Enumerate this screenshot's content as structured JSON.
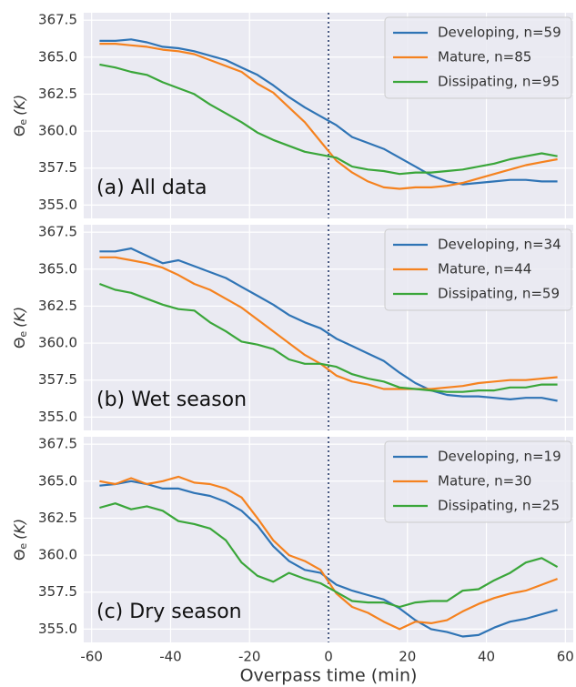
{
  "chart_data": [
    {
      "type": "line",
      "annotation": "(a) All data",
      "ylabel_symbol": "Θ",
      "ylabel_subscript": "e",
      "ylabel_unit": "(K)",
      "xlim": [
        -62,
        62
      ],
      "xticks": [
        -60,
        -40,
        -20,
        0,
        20,
        40,
        60
      ],
      "ylim": [
        354.1,
        368.0
      ],
      "yticks": [
        355.0,
        357.5,
        360.0,
        362.5,
        365.0,
        367.5
      ],
      "grid": true,
      "vline_x": 0,
      "legend": "upper right",
      "x": [
        -58,
        -54,
        -50,
        -46,
        -42,
        -38,
        -34,
        -30,
        -26,
        -22,
        -18,
        -14,
        -10,
        -6,
        -2,
        2,
        6,
        10,
        14,
        18,
        22,
        26,
        30,
        34,
        38,
        42,
        46,
        50,
        54,
        58
      ],
      "series": [
        {
          "name": "Developing, n=59",
          "color": "#2f74b5",
          "values": [
            366.1,
            366.1,
            366.2,
            366.0,
            365.7,
            365.6,
            365.4,
            365.1,
            364.8,
            364.3,
            363.8,
            363.1,
            362.3,
            361.6,
            361.0,
            360.4,
            359.6,
            359.2,
            358.8,
            358.2,
            357.6,
            357.0,
            356.6,
            356.4,
            356.5,
            356.6,
            356.7,
            356.7,
            356.6,
            356.6
          ]
        },
        {
          "name": "Mature, n=85",
          "color": "#f5821f",
          "values": [
            365.9,
            365.9,
            365.8,
            365.7,
            365.5,
            365.4,
            365.2,
            364.8,
            364.4,
            364.0,
            363.2,
            362.6,
            361.6,
            360.6,
            359.3,
            358.0,
            357.2,
            356.6,
            356.2,
            356.1,
            356.2,
            356.2,
            356.3,
            356.5,
            356.8,
            357.1,
            357.4,
            357.7,
            357.9,
            358.1
          ]
        },
        {
          "name": "Dissipating, n=95",
          "color": "#3aa63a",
          "values": [
            364.5,
            364.3,
            364.0,
            363.8,
            363.3,
            362.9,
            362.5,
            361.8,
            361.2,
            360.6,
            359.9,
            359.4,
            359.0,
            358.6,
            358.4,
            358.2,
            357.6,
            357.4,
            357.3,
            357.1,
            357.2,
            357.2,
            357.3,
            357.4,
            357.6,
            357.8,
            358.1,
            358.3,
            358.5,
            358.3
          ]
        }
      ]
    },
    {
      "type": "line",
      "annotation": "(b) Wet season",
      "ylabel_symbol": "Θ",
      "ylabel_subscript": "e",
      "ylabel_unit": "(K)",
      "xlim": [
        -62,
        62
      ],
      "xticks": [
        -60,
        -40,
        -20,
        0,
        20,
        40,
        60
      ],
      "ylim": [
        354.1,
        368.0
      ],
      "yticks": [
        355.0,
        357.5,
        360.0,
        362.5,
        365.0,
        367.5
      ],
      "grid": true,
      "vline_x": 0,
      "legend": "upper right",
      "x": [
        -58,
        -54,
        -50,
        -46,
        -42,
        -38,
        -34,
        -30,
        -26,
        -22,
        -18,
        -14,
        -10,
        -6,
        -2,
        2,
        6,
        10,
        14,
        18,
        22,
        26,
        30,
        34,
        38,
        42,
        46,
        50,
        54,
        58
      ],
      "series": [
        {
          "name": "Developing, n=34",
          "color": "#2f74b5",
          "values": [
            366.2,
            366.2,
            366.4,
            365.9,
            365.4,
            365.6,
            365.2,
            364.8,
            364.4,
            363.8,
            363.2,
            362.6,
            361.9,
            361.4,
            361.0,
            360.3,
            359.8,
            359.3,
            358.8,
            358.0,
            357.3,
            356.8,
            356.5,
            356.4,
            356.4,
            356.3,
            356.2,
            356.3,
            356.3,
            356.1
          ]
        },
        {
          "name": "Mature, n=44",
          "color": "#f5821f",
          "values": [
            365.8,
            365.8,
            365.6,
            365.4,
            365.1,
            364.6,
            364.0,
            363.6,
            363.0,
            362.4,
            361.6,
            360.8,
            360.0,
            359.2,
            358.6,
            357.8,
            357.4,
            357.2,
            356.9,
            356.9,
            356.9,
            356.9,
            357.0,
            357.1,
            357.3,
            357.4,
            357.5,
            357.5,
            357.6,
            357.7
          ]
        },
        {
          "name": "Dissipating, n=59",
          "color": "#3aa63a",
          "values": [
            364.0,
            363.6,
            363.4,
            363.0,
            362.6,
            362.3,
            362.2,
            361.4,
            360.8,
            360.1,
            359.9,
            359.6,
            358.9,
            358.6,
            358.6,
            358.4,
            357.9,
            357.6,
            357.4,
            357.0,
            356.9,
            356.8,
            356.7,
            356.7,
            356.8,
            356.8,
            357.0,
            357.0,
            357.2,
            357.2
          ]
        }
      ]
    },
    {
      "type": "line",
      "annotation": "(c) Dry season",
      "ylabel_symbol": "Θ",
      "ylabel_subscript": "e",
      "ylabel_unit": "(K)",
      "xlabel": "Overpass time (min)",
      "xlim": [
        -62,
        62
      ],
      "xticks": [
        -60,
        -40,
        -20,
        0,
        20,
        40,
        60
      ],
      "ylim": [
        354.1,
        368.0
      ],
      "yticks": [
        355.0,
        357.5,
        360.0,
        362.5,
        365.0,
        367.5
      ],
      "grid": true,
      "vline_x": 0,
      "legend": "upper right",
      "x": [
        -58,
        -54,
        -50,
        -46,
        -42,
        -38,
        -34,
        -30,
        -26,
        -22,
        -18,
        -14,
        -10,
        -6,
        -2,
        2,
        6,
        10,
        14,
        18,
        22,
        26,
        30,
        34,
        38,
        42,
        46,
        50,
        54,
        58
      ],
      "series": [
        {
          "name": "Developing, n=19",
          "color": "#2f74b5",
          "values": [
            364.7,
            364.8,
            365.0,
            364.8,
            364.5,
            364.5,
            364.2,
            364.0,
            363.6,
            363.0,
            362.0,
            360.6,
            359.6,
            359.0,
            358.8,
            358.0,
            357.6,
            357.3,
            357.0,
            356.4,
            355.6,
            355.0,
            354.8,
            354.5,
            354.6,
            355.1,
            355.5,
            355.7,
            356.0,
            356.3
          ]
        },
        {
          "name": "Mature, n=30",
          "color": "#f5821f",
          "values": [
            365.0,
            364.8,
            365.2,
            364.8,
            365.0,
            365.3,
            364.9,
            364.8,
            364.5,
            363.9,
            362.5,
            361.0,
            360.0,
            359.6,
            359.0,
            357.4,
            356.5,
            356.1,
            355.5,
            355.0,
            355.5,
            355.4,
            355.6,
            356.2,
            356.7,
            357.1,
            357.4,
            357.6,
            358.0,
            358.4
          ]
        },
        {
          "name": "Dissipating, n=25",
          "color": "#3aa63a",
          "values": [
            363.2,
            363.5,
            363.1,
            363.3,
            363.0,
            362.3,
            362.1,
            361.8,
            361.0,
            359.5,
            358.6,
            358.2,
            358.8,
            358.4,
            358.1,
            357.5,
            356.9,
            356.8,
            356.8,
            356.5,
            356.8,
            356.9,
            356.9,
            357.6,
            357.7,
            358.3,
            358.8,
            359.5,
            359.8,
            359.2
          ]
        }
      ]
    }
  ]
}
